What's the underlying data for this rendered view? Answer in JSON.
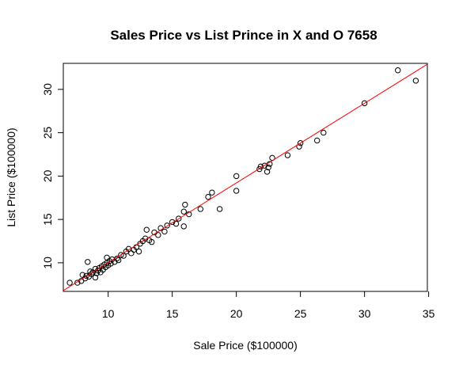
{
  "chart_data": {
    "type": "scatter",
    "title": "Sales Price vs List Prince in X and O 7658",
    "xlabel": "Sale Price ($100000)",
    "ylabel": "List Price ($100000)",
    "xlim": [
      6.5,
      34.9
    ],
    "ylim": [
      6.7,
      33.0
    ],
    "xticks": [
      10,
      15,
      20,
      25,
      30,
      35
    ],
    "yticks": [
      10,
      15,
      20,
      25,
      30
    ],
    "grid": false,
    "point_color": "#000000",
    "fit_line": {
      "color": "#ff0000",
      "from": [
        6.5,
        6.8
      ],
      "to": [
        34.9,
        32.9
      ]
    },
    "points": [
      [
        7.0,
        7.7
      ],
      [
        7.6,
        7.7
      ],
      [
        7.9,
        7.9
      ],
      [
        8.0,
        8.6
      ],
      [
        8.2,
        8.2
      ],
      [
        8.3,
        8.5
      ],
      [
        8.5,
        8.4
      ],
      [
        8.6,
        9.0
      ],
      [
        8.4,
        10.1
      ],
      [
        8.7,
        8.7
      ],
      [
        8.8,
        8.9
      ],
      [
        9.0,
        8.3
      ],
      [
        9.0,
        9.3
      ],
      [
        9.1,
        8.8
      ],
      [
        9.2,
        9.1
      ],
      [
        9.3,
        9.4
      ],
      [
        9.4,
        8.9
      ],
      [
        9.5,
        9.6
      ],
      [
        9.6,
        9.2
      ],
      [
        9.7,
        9.8
      ],
      [
        9.8,
        9.5
      ],
      [
        9.9,
        10.0
      ],
      [
        9.9,
        10.6
      ],
      [
        10.0,
        9.7
      ],
      [
        10.1,
        10.2
      ],
      [
        10.2,
        9.9
      ],
      [
        10.3,
        10.4
      ],
      [
        10.5,
        10.1
      ],
      [
        10.7,
        10.5
      ],
      [
        10.8,
        10.3
      ],
      [
        11.0,
        10.9
      ],
      [
        11.2,
        10.8
      ],
      [
        11.4,
        11.3
      ],
      [
        11.6,
        11.6
      ],
      [
        11.8,
        11.1
      ],
      [
        12.0,
        11.5
      ],
      [
        12.2,
        11.8
      ],
      [
        12.4,
        11.3
      ],
      [
        12.5,
        12.2
      ],
      [
        12.7,
        12.5
      ],
      [
        12.9,
        12.8
      ],
      [
        13.0,
        13.8
      ],
      [
        13.2,
        12.6
      ],
      [
        13.4,
        12.4
      ],
      [
        13.6,
        13.5
      ],
      [
        13.9,
        13.2
      ],
      [
        14.1,
        14.0
      ],
      [
        14.4,
        13.6
      ],
      [
        14.6,
        14.3
      ],
      [
        15.0,
        14.7
      ],
      [
        15.3,
        14.5
      ],
      [
        15.5,
        15.1
      ],
      [
        15.9,
        14.2
      ],
      [
        15.9,
        15.9
      ],
      [
        16.0,
        16.7
      ],
      [
        16.3,
        15.6
      ],
      [
        17.2,
        16.2
      ],
      [
        17.8,
        17.6
      ],
      [
        18.1,
        18.1
      ],
      [
        18.7,
        16.2
      ],
      [
        20.0,
        18.3
      ],
      [
        20.0,
        20.0
      ],
      [
        21.8,
        20.8
      ],
      [
        21.9,
        21.1
      ],
      [
        22.2,
        21.2
      ],
      [
        22.4,
        20.5
      ],
      [
        22.5,
        21.0
      ],
      [
        22.6,
        21.4
      ],
      [
        22.8,
        22.1
      ],
      [
        24.0,
        22.4
      ],
      [
        24.9,
        23.4
      ],
      [
        25.0,
        23.8
      ],
      [
        26.3,
        24.1
      ],
      [
        26.8,
        25.0
      ],
      [
        30.0,
        28.4
      ],
      [
        32.6,
        32.2
      ],
      [
        34.0,
        31.0
      ]
    ]
  }
}
